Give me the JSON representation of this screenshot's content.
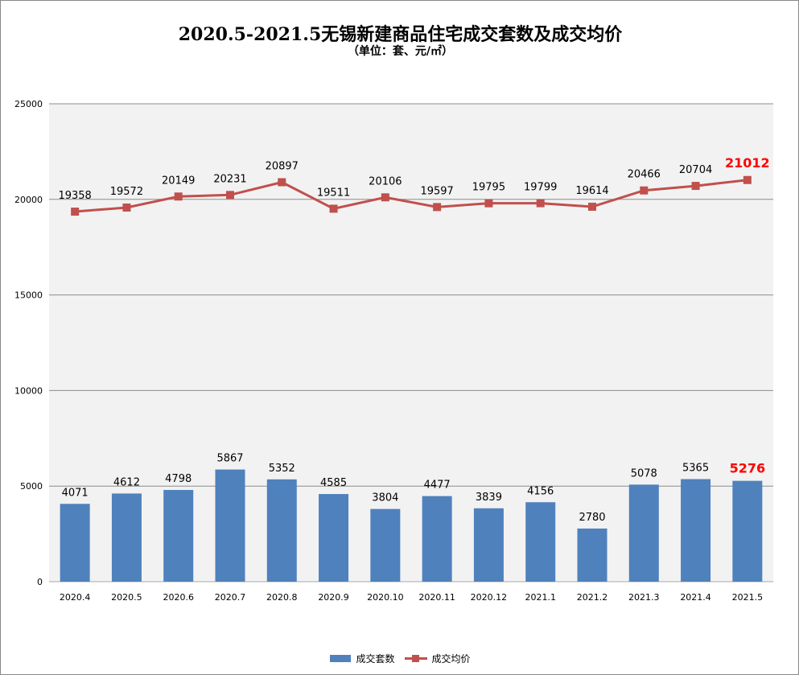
{
  "chart_data": {
    "type": "bar+line",
    "title": "2020.5-2021.5无锡新建商品住宅成交套数及成交均价",
    "subtitle": "（单位：套、元/㎡）",
    "categories": [
      "2020.4",
      "2020.5",
      "2020.6",
      "2020.7",
      "2020.8",
      "2020.9",
      "2020.10",
      "2020.11",
      "2020.12",
      "2021.1",
      "2021.2",
      "2021.3",
      "2021.4",
      "2021.5"
    ],
    "series": [
      {
        "name": "成交套数",
        "type": "bar",
        "color": "#4f81bd",
        "values": [
          4071,
          4612,
          4798,
          5867,
          5352,
          4585,
          3804,
          4477,
          3839,
          4156,
          2780,
          5078,
          5365,
          5276
        ]
      },
      {
        "name": "成交均价",
        "type": "line",
        "color": "#c0504d",
        "values": [
          19358,
          19572,
          20149,
          20231,
          20897,
          19511,
          20106,
          19597,
          19795,
          19799,
          19614,
          20466,
          20704,
          21012
        ]
      }
    ],
    "ylim": [
      0,
      25000
    ],
    "yticks": [
      "0",
      "5000",
      "10000",
      "15000",
      "20000",
      "25000"
    ],
    "grid": true,
    "legend": "bottom",
    "highlight_color": "#ff0000"
  }
}
